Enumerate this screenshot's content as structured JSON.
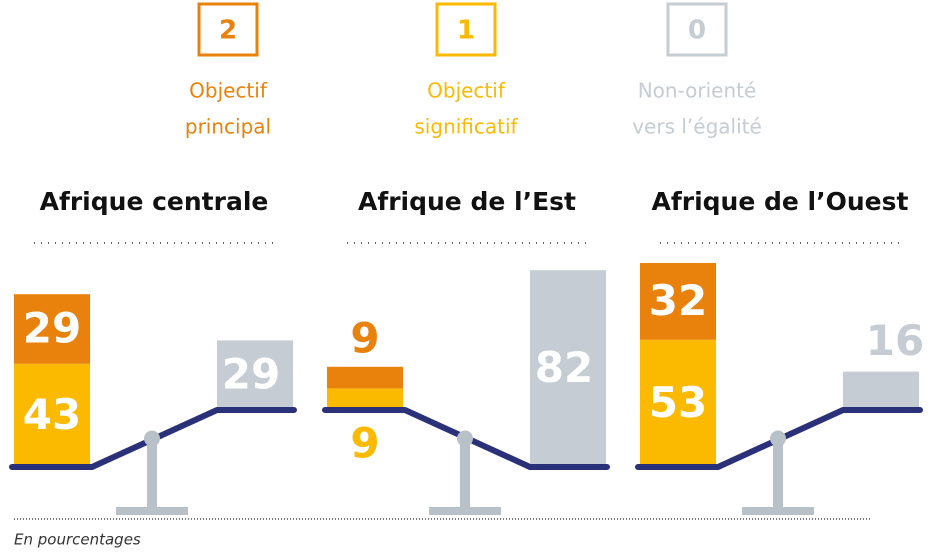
{
  "legend": [
    {
      "key": "2",
      "label": [
        "Objectif",
        "principal"
      ],
      "color": "#e8820c"
    },
    {
      "key": "1",
      "label": [
        "Objectif",
        "significatif"
      ],
      "color": "#fbb900"
    },
    {
      "key": "0",
      "label": [
        "Non-orienté",
        "vers l’égalité"
      ],
      "color": "#c5ccd3"
    }
  ],
  "chart_data": [
    {
      "type": "balance",
      "title": "Afrique centrale",
      "values": [
        29,
        43,
        29
      ]
    },
    {
      "type": "balance",
      "title": "Afrique de l’Est",
      "values": [
        9,
        9,
        82
      ]
    },
    {
      "type": "balance",
      "title": "Afrique de l’Ouest",
      "values": [
        32,
        53,
        16
      ]
    }
  ],
  "note": "En pourcentages"
}
